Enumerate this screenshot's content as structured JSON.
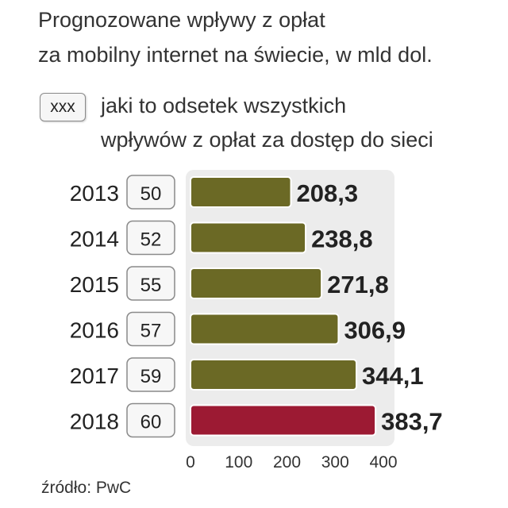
{
  "title": [
    "Prognozowane wpływy z opłat",
    "za mobilny internet na świecie, w mld dol."
  ],
  "legend": {
    "box_label": "xxx",
    "description": [
      "jaki to odsetek wszystkich",
      "wpływów z opłat za dostęp do sieci"
    ]
  },
  "source": "źródło: PwC",
  "colors": {
    "bar": "#6b6925",
    "highlight_bar": "#9c1a33",
    "plot_background": "#ececec",
    "value_text": "#222222"
  },
  "chart_data": {
    "type": "bar",
    "orientation": "horizontal",
    "categories": [
      "2013",
      "2014",
      "2015",
      "2016",
      "2017",
      "2018"
    ],
    "values": [
      208.3,
      238.8,
      271.8,
      306.9,
      344.1,
      383.7
    ],
    "value_labels": [
      "208,3",
      "238,8",
      "271,8",
      "306,9",
      "344,1",
      "383,7"
    ],
    "share_percent": [
      50,
      52,
      55,
      57,
      59,
      60
    ],
    "highlight_category": "2018",
    "xlim": [
      0,
      400
    ],
    "xticks": [
      0,
      100,
      200,
      300,
      400
    ],
    "xlabel": "",
    "ylabel": "",
    "grid": false
  }
}
